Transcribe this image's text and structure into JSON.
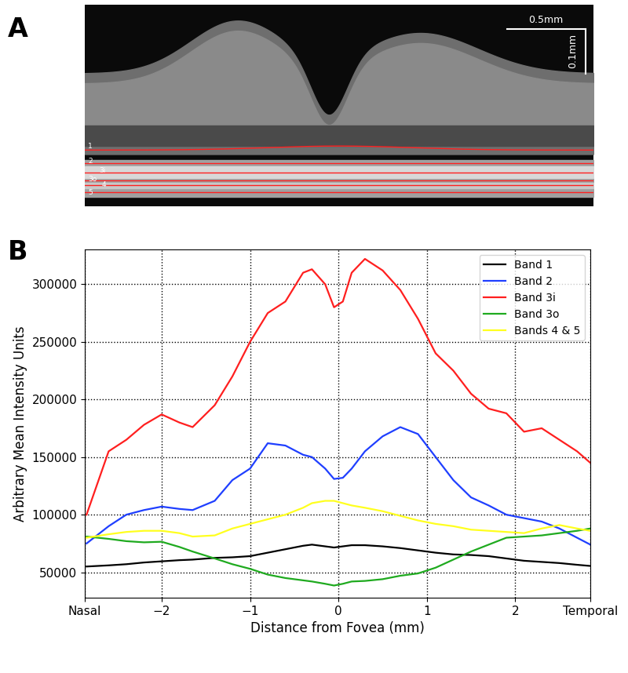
{
  "chart_data": [
    {
      "type": "image",
      "panel_label": "A",
      "scale_bar_labels": [
        "0.5mm",
        "0.1mm"
      ],
      "band_labels": [
        "1",
        "2",
        "3i",
        "3o",
        "4",
        "5"
      ]
    },
    {
      "type": "line",
      "panel_label": "B",
      "x_label": "Distance from Fovea (mm)",
      "y_label": "Arbitrary Mean Intensity Units",
      "x": [
        -2.85,
        -2.6,
        -2.4,
        -2.2,
        -2.0,
        -1.8,
        -1.65,
        -1.4,
        -1.2,
        -1.0,
        -0.8,
        -0.6,
        -0.4,
        -0.3,
        -0.15,
        -0.05,
        0.05,
        0.15,
        0.3,
        0.5,
        0.7,
        0.9,
        1.1,
        1.3,
        1.5,
        1.7,
        1.9,
        2.1,
        2.3,
        2.5,
        2.7,
        2.85
      ],
      "series": [
        {
          "name": "Band 1",
          "color": "#000000",
          "values": [
            55000,
            56000,
            57000,
            58500,
            59500,
            60500,
            61000,
            62500,
            63000,
            64000,
            67000,
            70000,
            73000,
            74000,
            72500,
            71500,
            72500,
            73500,
            73500,
            72500,
            71000,
            69000,
            67000,
            65500,
            65000,
            64000,
            62000,
            60000,
            59000,
            58000,
            56500,
            55500
          ]
        },
        {
          "name": "Band 2",
          "color": "#1f3fff",
          "values": [
            75000,
            90000,
            100000,
            104000,
            107000,
            105000,
            104000,
            112000,
            130000,
            140000,
            162000,
            160000,
            152000,
            150000,
            140000,
            131000,
            132000,
            140000,
            155000,
            168000,
            176000,
            170000,
            150000,
            130000,
            115000,
            108000,
            100000,
            97000,
            94000,
            88000,
            80000,
            74000
          ]
        },
        {
          "name": "Band 3i",
          "color": "#ff1f1f",
          "values": [
            100000,
            155000,
            165000,
            178000,
            187000,
            180000,
            176000,
            195000,
            220000,
            250000,
            275000,
            285000,
            310000,
            313000,
            300000,
            280000,
            285000,
            310000,
            322000,
            312000,
            295000,
            270000,
            240000,
            225000,
            205000,
            192000,
            188000,
            172000,
            175000,
            165000,
            155000,
            145000
          ]
        },
        {
          "name": "Band 3o",
          "color": "#1faa1f",
          "values": [
            81000,
            79000,
            77000,
            76000,
            76500,
            72000,
            68000,
            62000,
            57000,
            53000,
            48000,
            45000,
            43000,
            42000,
            40000,
            38500,
            40000,
            42000,
            42500,
            44000,
            47000,
            49000,
            54000,
            61000,
            68000,
            74000,
            80000,
            81000,
            82000,
            84000,
            86000,
            88000
          ]
        },
        {
          "name": "Bands 4 & 5",
          "color": "#ffff1f",
          "values": [
            80000,
            83000,
            85000,
            86000,
            86000,
            84000,
            81000,
            82000,
            88000,
            92000,
            96000,
            100000,
            106000,
            110000,
            112000,
            112000,
            110000,
            108000,
            106000,
            103000,
            99000,
            95000,
            92000,
            90000,
            87000,
            86000,
            85000,
            84000,
            88000,
            91000,
            88000,
            86000
          ]
        }
      ],
      "xlim": [
        -2.87,
        2.85
      ],
      "xticks": [
        {
          "value": -2.87,
          "label": "Nasal"
        },
        {
          "value": -2,
          "label": "−2"
        },
        {
          "value": -1,
          "label": "−1"
        },
        0,
        1,
        2,
        {
          "value": 2.85,
          "label": "Temporal"
        }
      ],
      "ylim": [
        28000,
        330000
      ],
      "yticks": [
        50000,
        100000,
        150000,
        200000,
        250000,
        300000
      ],
      "grid": true,
      "legend": "upper right"
    }
  ]
}
